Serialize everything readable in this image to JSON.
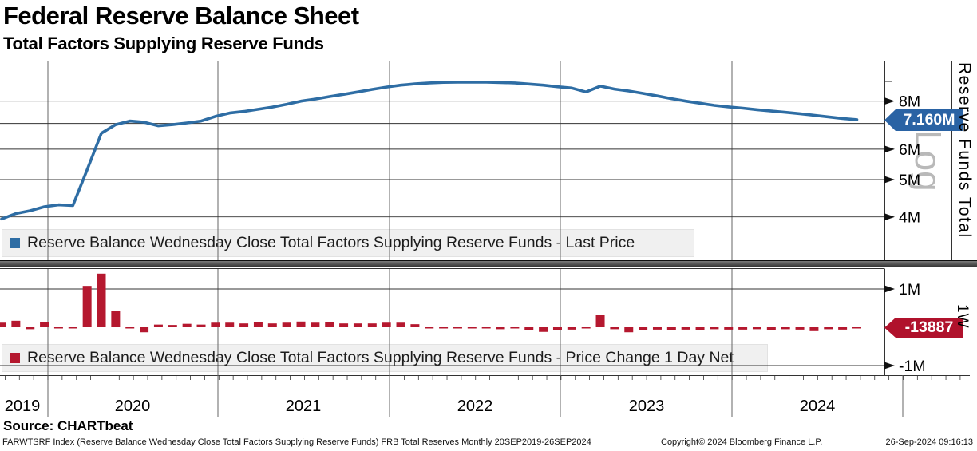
{
  "header": {
    "title": "Federal Reserve Balance Sheet",
    "subtitle": "Total Factors Supplying Reserve Funds"
  },
  "colors": {
    "line_blue": "#2e6da4",
    "flag_blue": "#2a63a4",
    "bar_red": "#b5182f",
    "flag_red": "#b0122c",
    "grid": "#333333",
    "year_line": "#666666",
    "legend_bg": "#f0f0f0",
    "watermark_gray": "#b9b9b9"
  },
  "top_chart": {
    "axis_title": "Reserve Funds Total",
    "scale_label": "Log",
    "last_price_label": "7.160M"
  },
  "bottom_chart": {
    "period_label": "1W",
    "last_value_label": "-13887"
  },
  "x_axis": {
    "years": [
      "2019",
      "2020",
      "2021",
      "2022",
      "2023",
      "2024"
    ]
  },
  "footer": {
    "source": "Source: CHARTbeat",
    "left": "FARWTSRF Index (Reserve Balance Wednesday Close Total Factors Supplying Reserve Funds) FRB Total Reserves  Monthly 20SEP2019-26SEP2024",
    "center": "Copyright© 2024 Bloomberg Finance L.P.",
    "right": "26-Sep-2024 09:16:13"
  },
  "chart_data": [
    {
      "type": "line",
      "title": "Reserve Balance Wednesday Close Total Factors Supplying Reserve Funds - Last Price",
      "unit": "millions (M)",
      "y_scale": "log",
      "ylim": [
        3.1,
        10.1
      ],
      "legend_position": "bottom-left",
      "grid": true,
      "y_ticks": [
        {
          "label": "8M",
          "value": 8
        },
        {
          "label": "6M",
          "value": 6
        },
        {
          "label": "5M",
          "value": 5
        },
        {
          "label": "4M",
          "value": 4
        }
      ],
      "extra_gridlines": [
        7
      ],
      "minor_ticks": [
        9
      ],
      "last_price_label": "7.160M",
      "x": [
        "Sep-2019",
        "Oct-2019",
        "Nov-2019",
        "Dec-2019",
        "Jan-2020",
        "Feb-2020",
        "Mar-2020",
        "Apr-2020",
        "May-2020",
        "Jun-2020",
        "Jul-2020",
        "Aug-2020",
        "Sep-2020",
        "Oct-2020",
        "Nov-2020",
        "Dec-2020",
        "Jan-2021",
        "Feb-2021",
        "Mar-2021",
        "Apr-2021",
        "May-2021",
        "Jun-2021",
        "Jul-2021",
        "Aug-2021",
        "Sep-2021",
        "Oct-2021",
        "Nov-2021",
        "Dec-2021",
        "Jan-2022",
        "Feb-2022",
        "Mar-2022",
        "Apr-2022",
        "May-2022",
        "Jun-2022",
        "Jul-2022",
        "Aug-2022",
        "Sep-2022",
        "Oct-2022",
        "Nov-2022",
        "Dec-2022",
        "Jan-2023",
        "Feb-2023",
        "Mar-2023",
        "Apr-2023",
        "May-2023",
        "Jun-2023",
        "Jul-2023",
        "Aug-2023",
        "Sep-2023",
        "Oct-2023",
        "Nov-2023",
        "Dec-2023",
        "Jan-2024",
        "Feb-2024",
        "Mar-2024",
        "Apr-2024",
        "May-2024",
        "Jun-2024",
        "Jul-2024",
        "Aug-2024",
        "Sep-2024"
      ],
      "values": [
        3.95,
        4.08,
        4.15,
        4.25,
        4.3,
        4.28,
        5.3,
        6.6,
        6.95,
        7.1,
        7.05,
        6.9,
        6.95,
        7.02,
        7.1,
        7.3,
        7.45,
        7.52,
        7.62,
        7.72,
        7.85,
        8.0,
        8.1,
        8.22,
        8.33,
        8.45,
        8.58,
        8.7,
        8.8,
        8.87,
        8.92,
        8.95,
        8.96,
        8.96,
        8.96,
        8.94,
        8.92,
        8.86,
        8.8,
        8.72,
        8.65,
        8.45,
        8.75,
        8.6,
        8.5,
        8.38,
        8.25,
        8.12,
        8.0,
        7.9,
        7.8,
        7.73,
        7.67,
        7.6,
        7.54,
        7.48,
        7.42,
        7.35,
        7.28,
        7.21,
        7.16
      ]
    },
    {
      "type": "bar",
      "title": "Reserve Balance Wednesday Close Total Factors Supplying Reserve Funds - Price Change 1 Day Net",
      "unit": "millions (M)",
      "y_scale": "linear",
      "ylim": [
        -1.25,
        1.55
      ],
      "legend_position": "bottom-left",
      "grid": true,
      "y_ticks": [
        {
          "label": "1M",
          "value": 1
        },
        {
          "label": "-1M",
          "value": -1
        }
      ],
      "last_value_label": "-13887",
      "x": [
        "Sep-2019",
        "Oct-2019",
        "Nov-2019",
        "Dec-2019",
        "Jan-2020",
        "Feb-2020",
        "Mar-2020",
        "Apr-2020",
        "May-2020",
        "Jun-2020",
        "Jul-2020",
        "Aug-2020",
        "Sep-2020",
        "Oct-2020",
        "Nov-2020",
        "Dec-2020",
        "Jan-2021",
        "Feb-2021",
        "Mar-2021",
        "Apr-2021",
        "May-2021",
        "Jun-2021",
        "Jul-2021",
        "Aug-2021",
        "Sep-2021",
        "Oct-2021",
        "Nov-2021",
        "Dec-2021",
        "Jan-2022",
        "Feb-2022",
        "Mar-2022",
        "Apr-2022",
        "May-2022",
        "Jun-2022",
        "Jul-2022",
        "Aug-2022",
        "Sep-2022",
        "Oct-2022",
        "Nov-2022",
        "Dec-2022",
        "Jan-2023",
        "Feb-2023",
        "Mar-2023",
        "Apr-2023",
        "May-2023",
        "Jun-2023",
        "Jul-2023",
        "Aug-2023",
        "Sep-2023",
        "Oct-2023",
        "Nov-2023",
        "Dec-2023",
        "Jan-2024",
        "Feb-2024",
        "Mar-2024",
        "Apr-2024",
        "May-2024",
        "Jun-2024",
        "Jul-2024",
        "Aug-2024",
        "Sep-2024"
      ],
      "values": [
        0.12,
        0.17,
        -0.05,
        0.14,
        -0.03,
        -0.03,
        1.08,
        1.4,
        0.42,
        -0.03,
        -0.13,
        0.07,
        0.06,
        0.09,
        0.07,
        0.12,
        0.12,
        0.1,
        0.14,
        0.1,
        0.12,
        0.15,
        0.12,
        0.13,
        0.1,
        0.1,
        0.1,
        0.12,
        0.12,
        0.08,
        -0.02,
        -0.02,
        -0.02,
        -0.03,
        -0.02,
        -0.05,
        -0.02,
        -0.07,
        -0.12,
        -0.07,
        -0.06,
        -0.02,
        0.33,
        -0.05,
        -0.13,
        -0.07,
        -0.06,
        -0.08,
        -0.06,
        -0.07,
        -0.05,
        -0.06,
        -0.06,
        -0.05,
        -0.07,
        -0.05,
        -0.06,
        -0.1,
        -0.05,
        -0.06,
        -0.014
      ]
    }
  ]
}
